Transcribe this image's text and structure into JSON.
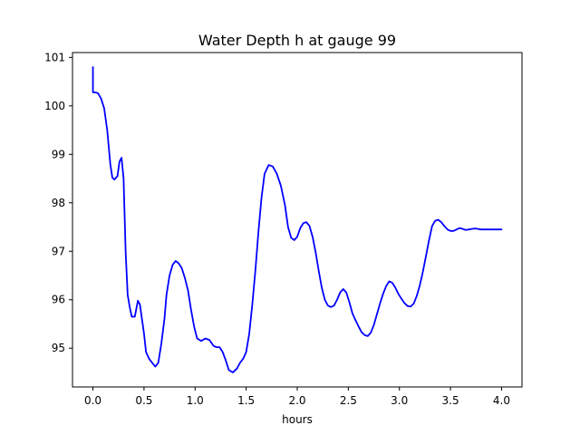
{
  "chart_data": {
    "type": "line",
    "title": "Water Depth h at gauge 99",
    "xlabel": "hours",
    "ylabel": "",
    "xlim": [
      -0.2,
      4.2
    ],
    "ylim": [
      94.2,
      101.1
    ],
    "xticks": [
      0.0,
      0.5,
      1.0,
      1.5,
      2.0,
      2.5,
      3.0,
      3.5,
      4.0
    ],
    "xtick_labels": [
      "0.0",
      "0.5",
      "1.0",
      "1.5",
      "2.0",
      "2.5",
      "3.0",
      "3.5",
      "4.0"
    ],
    "yticks": [
      95,
      96,
      97,
      98,
      99,
      100,
      101
    ],
    "ytick_labels": [
      "95",
      "96",
      "97",
      "98",
      "99",
      "100",
      "101"
    ],
    "grid": false,
    "series": [
      {
        "color": "#0000ff",
        "x": [
          0.0,
          0.0,
          0.0,
          0.02,
          0.05,
          0.08,
          0.11,
          0.14,
          0.17,
          0.19,
          0.21,
          0.24,
          0.26,
          0.28,
          0.3,
          0.32,
          0.34,
          0.36,
          0.38,
          0.41,
          0.44,
          0.46,
          0.48,
          0.5,
          0.52,
          0.55,
          0.58,
          0.61,
          0.64,
          0.67,
          0.7,
          0.72,
          0.75,
          0.78,
          0.81,
          0.84,
          0.87,
          0.9,
          0.93,
          0.96,
          0.99,
          1.02,
          1.06,
          1.1,
          1.14,
          1.18,
          1.21,
          1.24,
          1.27,
          1.3,
          1.33,
          1.37,
          1.41,
          1.44,
          1.47,
          1.5,
          1.53,
          1.56,
          1.59,
          1.62,
          1.65,
          1.68,
          1.72,
          1.76,
          1.8,
          1.84,
          1.88,
          1.91,
          1.94,
          1.97,
          2.0,
          2.03,
          2.06,
          2.09,
          2.12,
          2.15,
          2.18,
          2.21,
          2.24,
          2.27,
          2.3,
          2.33,
          2.36,
          2.39,
          2.42,
          2.45,
          2.48,
          2.51,
          2.54,
          2.57,
          2.6,
          2.63,
          2.66,
          2.69,
          2.72,
          2.75,
          2.78,
          2.81,
          2.84,
          2.87,
          2.9,
          2.93,
          2.96,
          2.99,
          3.02,
          3.05,
          3.08,
          3.11,
          3.14,
          3.17,
          3.2,
          3.23,
          3.26,
          3.29,
          3.32,
          3.35,
          3.38,
          3.41,
          3.44,
          3.47,
          3.5,
          3.53,
          3.56,
          3.59,
          3.62,
          3.65,
          3.68,
          3.71,
          3.74,
          3.77,
          3.8,
          3.83,
          3.86,
          3.89,
          3.92,
          3.95,
          3.98,
          4.0
        ],
        "y": [
          100.8,
          100.28,
          100.28,
          100.28,
          100.26,
          100.15,
          99.95,
          99.5,
          98.8,
          98.52,
          98.48,
          98.55,
          98.85,
          98.93,
          98.5,
          97.0,
          96.1,
          95.85,
          95.65,
          95.65,
          95.98,
          95.9,
          95.6,
          95.3,
          94.92,
          94.78,
          94.7,
          94.62,
          94.7,
          95.1,
          95.6,
          96.1,
          96.5,
          96.72,
          96.8,
          96.75,
          96.65,
          96.45,
          96.2,
          95.8,
          95.45,
          95.2,
          95.15,
          95.2,
          95.17,
          95.05,
          95.02,
          95.02,
          94.92,
          94.75,
          94.55,
          94.5,
          94.58,
          94.7,
          94.78,
          94.92,
          95.3,
          95.9,
          96.6,
          97.4,
          98.1,
          98.6,
          98.78,
          98.75,
          98.6,
          98.35,
          97.95,
          97.5,
          97.28,
          97.23,
          97.3,
          97.48,
          97.58,
          97.6,
          97.52,
          97.3,
          96.98,
          96.6,
          96.25,
          96.0,
          95.88,
          95.85,
          95.88,
          96.0,
          96.15,
          96.22,
          96.15,
          95.95,
          95.72,
          95.58,
          95.45,
          95.33,
          95.27,
          95.25,
          95.32,
          95.48,
          95.7,
          95.92,
          96.12,
          96.28,
          96.38,
          96.35,
          96.25,
          96.12,
          96.02,
          95.93,
          95.87,
          95.86,
          95.92,
          96.08,
          96.3,
          96.58,
          96.9,
          97.23,
          97.52,
          97.63,
          97.65,
          97.6,
          97.52,
          97.45,
          97.42,
          97.42,
          97.45,
          97.48,
          97.46,
          97.44,
          97.45,
          97.46,
          97.47,
          97.46,
          97.45,
          97.45,
          97.45,
          97.45,
          97.45,
          97.45,
          97.45,
          97.45
        ]
      }
    ]
  }
}
